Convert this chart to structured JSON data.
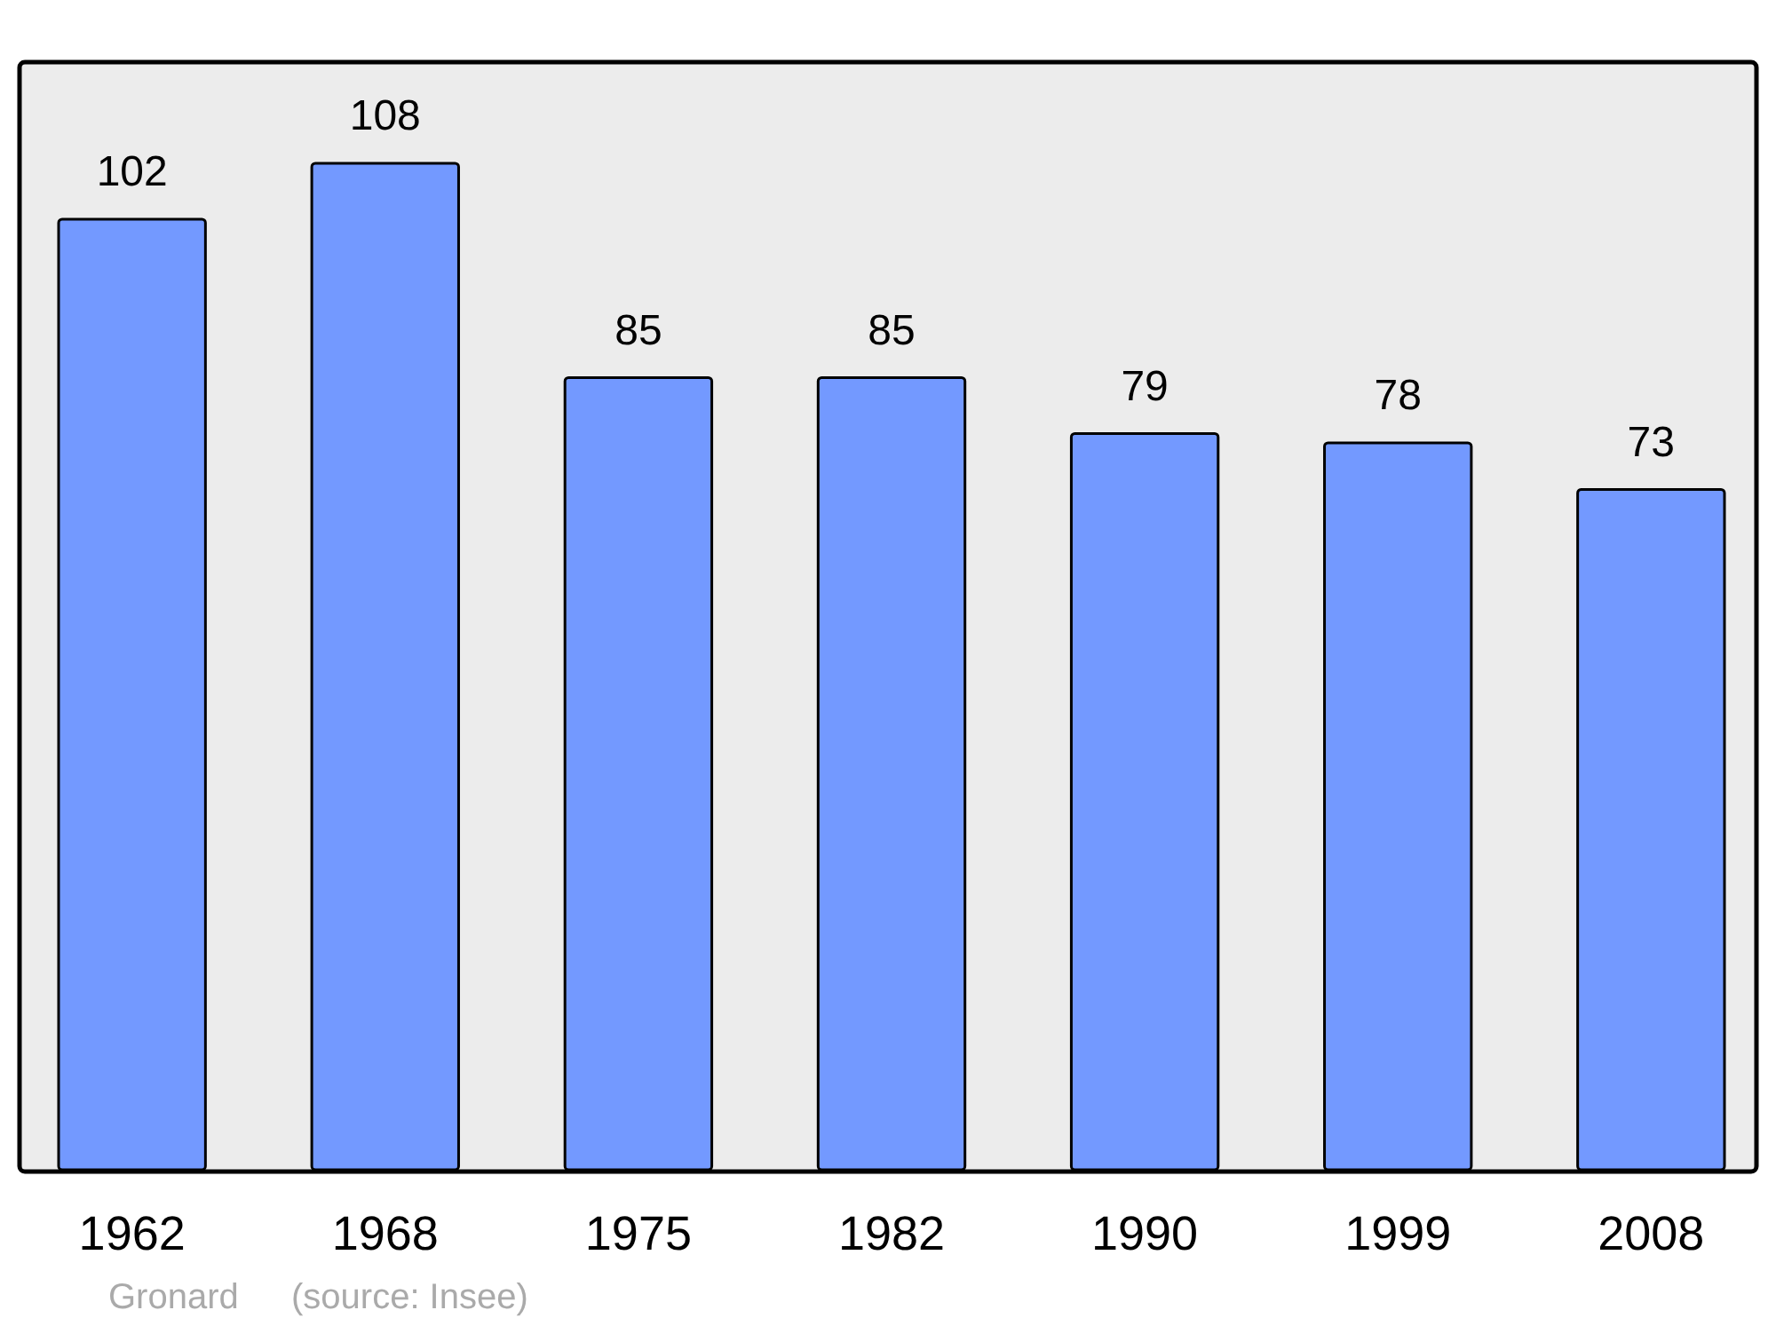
{
  "chart_data": {
    "type": "bar",
    "categories": [
      "1962",
      "1968",
      "1975",
      "1982",
      "1990",
      "1999",
      "2008"
    ],
    "values": [
      102,
      108,
      85,
      85,
      79,
      78,
      73
    ],
    "color": "#7399ff",
    "data_labels": true,
    "annotations": [
      "Gronard",
      "(source: Insee)"
    ]
  }
}
